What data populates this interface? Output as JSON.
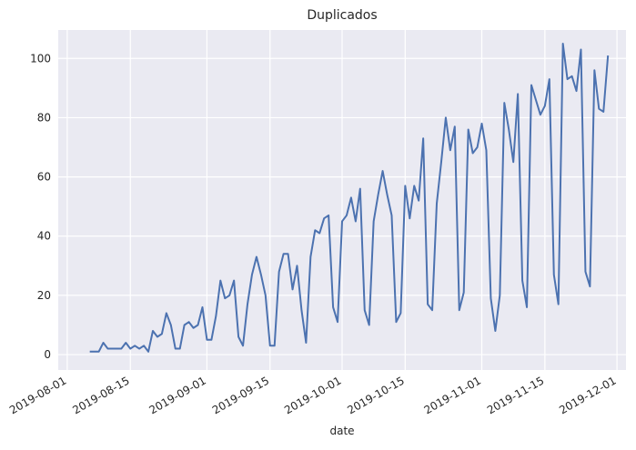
{
  "chart_data": {
    "type": "line",
    "title": "Duplicados",
    "x_label": "date",
    "x": [
      "2019-08-06",
      "2019-08-07",
      "2019-08-08",
      "2019-08-09",
      "2019-08-10",
      "2019-08-11",
      "2019-08-12",
      "2019-08-13",
      "2019-08-14",
      "2019-08-15",
      "2019-08-16",
      "2019-08-17",
      "2019-08-18",
      "2019-08-19",
      "2019-08-20",
      "2019-08-21",
      "2019-08-22",
      "2019-08-23",
      "2019-08-24",
      "2019-08-25",
      "2019-08-26",
      "2019-08-27",
      "2019-08-28",
      "2019-08-29",
      "2019-08-30",
      "2019-08-31",
      "2019-09-01",
      "2019-09-02",
      "2019-09-03",
      "2019-09-04",
      "2019-09-05",
      "2019-09-06",
      "2019-09-07",
      "2019-09-08",
      "2019-09-09",
      "2019-09-10",
      "2019-09-11",
      "2019-09-12",
      "2019-09-13",
      "2019-09-14",
      "2019-09-15",
      "2019-09-16",
      "2019-09-17",
      "2019-09-18",
      "2019-09-19",
      "2019-09-20",
      "2019-09-21",
      "2019-09-22",
      "2019-09-23",
      "2019-09-24",
      "2019-09-25",
      "2019-09-26",
      "2019-09-27",
      "2019-09-28",
      "2019-09-29",
      "2019-09-30",
      "2019-10-01",
      "2019-10-02",
      "2019-10-03",
      "2019-10-04",
      "2019-10-05",
      "2019-10-06",
      "2019-10-07",
      "2019-10-08",
      "2019-10-09",
      "2019-10-10",
      "2019-10-11",
      "2019-10-12",
      "2019-10-13",
      "2019-10-14",
      "2019-10-15",
      "2019-10-16",
      "2019-10-17",
      "2019-10-18",
      "2019-10-19",
      "2019-10-20",
      "2019-10-21",
      "2019-10-22",
      "2019-10-23",
      "2019-10-24",
      "2019-10-25",
      "2019-10-26",
      "2019-10-27",
      "2019-10-28",
      "2019-10-29",
      "2019-10-30",
      "2019-10-31",
      "2019-11-01",
      "2019-11-02",
      "2019-11-03",
      "2019-11-04",
      "2019-11-05",
      "2019-11-06",
      "2019-11-07",
      "2019-11-08",
      "2019-11-09",
      "2019-11-10",
      "2019-11-11",
      "2019-11-12",
      "2019-11-13",
      "2019-11-14",
      "2019-11-15",
      "2019-11-16",
      "2019-11-17",
      "2019-11-18",
      "2019-11-19",
      "2019-11-20",
      "2019-11-21",
      "2019-11-22",
      "2019-11-23",
      "2019-11-24",
      "2019-11-25",
      "2019-11-26",
      "2019-11-27",
      "2019-11-28",
      "2019-11-29"
    ],
    "series": [
      {
        "color": "#4c72b0",
        "values": [
          1,
          1,
          1,
          4,
          2,
          2,
          2,
          2,
          4,
          2,
          3,
          2,
          3,
          1,
          8,
          6,
          7,
          14,
          10,
          2,
          2,
          10,
          11,
          9,
          10,
          16,
          5,
          5,
          13,
          25,
          19,
          20,
          25,
          6,
          3,
          17,
          27,
          33,
          27,
          20,
          3,
          3,
          28,
          34,
          34,
          22,
          30,
          15,
          4,
          33,
          42,
          41,
          46,
          47,
          16,
          11,
          45,
          47,
          53,
          45,
          56,
          15,
          10,
          45,
          54,
          62,
          54,
          47,
          11,
          14,
          57,
          46,
          57,
          52,
          73,
          17,
          15,
          51,
          65,
          80,
          69,
          77,
          15,
          21,
          76,
          68,
          70,
          78,
          69,
          19,
          8,
          20,
          85,
          76,
          65,
          88,
          25,
          16,
          91,
          86,
          81,
          84,
          93,
          27,
          17,
          105,
          93,
          94,
          89,
          103,
          28,
          23,
          96,
          83,
          82,
          101
        ]
      }
    ],
    "xlim": [
      "2019-07-30",
      "2019-12-03"
    ],
    "xticks": [
      "2019-08-01",
      "2019-08-15",
      "2019-09-01",
      "2019-09-15",
      "2019-10-01",
      "2019-10-15",
      "2019-11-01",
      "2019-11-15",
      "2019-12-01"
    ],
    "ylim": [
      -5.2,
      109.6
    ],
    "yticks": [
      0,
      20,
      40,
      60,
      80,
      100
    ],
    "grid": true
  }
}
